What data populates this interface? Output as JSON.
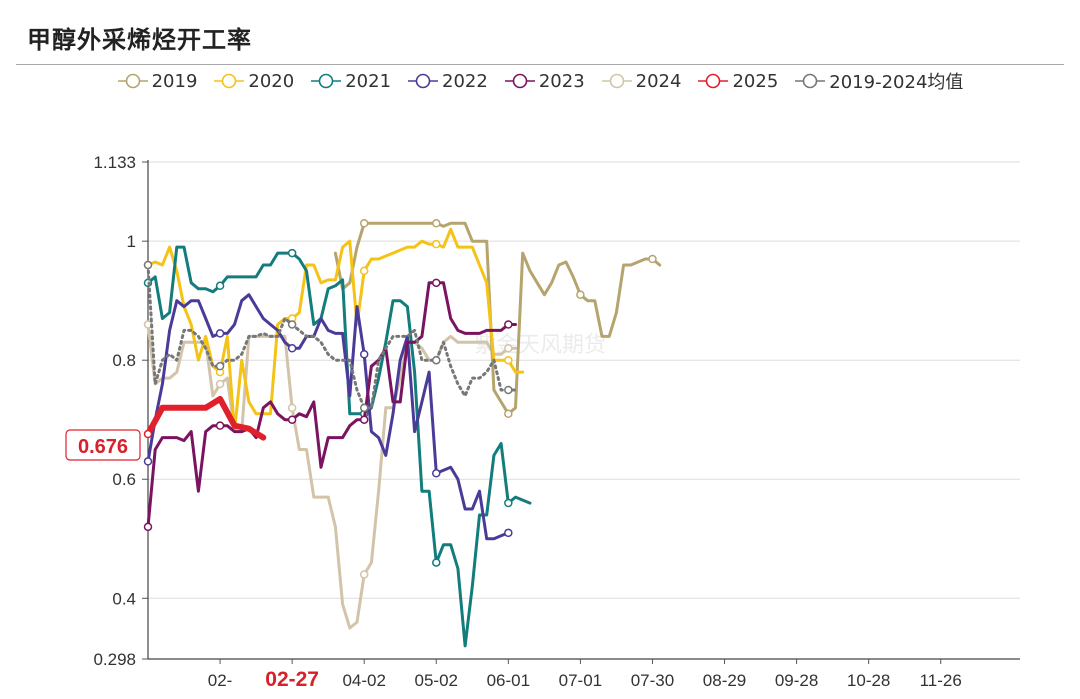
{
  "title": "甲醇外采烯烃开工率",
  "chart_data": {
    "type": "line",
    "title": "甲醇外采烯烃开工率",
    "xlabel": "",
    "ylabel": "",
    "ylim": [
      0.298,
      1.133
    ],
    "yticks": [
      0.298,
      0.4,
      0.6,
      0.8,
      1,
      1.133
    ],
    "ytick_labels": [
      "0.298",
      "0.4",
      "0.6",
      "0.8",
      "1",
      "1.133"
    ],
    "xticks": [
      {
        "label": "02-",
        "week": 10
      },
      {
        "label": "02-27",
        "week": 20,
        "highlight": true
      },
      {
        "label": "04-02",
        "week": 30
      },
      {
        "label": "05-02",
        "week": 40
      },
      {
        "label": "06-01",
        "week": 50
      },
      {
        "label": "07-01",
        "week": 60
      },
      {
        "label": "07-30",
        "week": 70
      },
      {
        "label": "08-29",
        "week": 80
      },
      {
        "label": "09-28",
        "week": 90
      },
      {
        "label": "10-28",
        "week": 100
      },
      {
        "label": "11-26",
        "week": 110
      }
    ],
    "x_weeks_total": 121,
    "grid": true,
    "legend_position": "top",
    "current_value_label": "0.676",
    "current_value": 0.676,
    "watermark": "紫金天风期货",
    "series": [
      {
        "name": "2019",
        "color": "#b5a46e",
        "width": 3,
        "dash": false,
        "values": [
          null,
          null,
          null,
          null,
          null,
          null,
          null,
          null,
          null,
          null,
          null,
          null,
          null,
          null,
          null,
          null,
          null,
          null,
          null,
          null,
          null,
          null,
          null,
          null,
          null,
          null,
          0.98,
          0.92,
          0.93,
          0.99,
          1.03,
          1.03,
          1.03,
          1.03,
          1.03,
          1.03,
          1.03,
          1.03,
          1.03,
          1.03,
          1.03,
          1.025,
          1.03,
          1.03,
          1.03,
          1.0,
          1.0,
          1.0,
          0.75,
          0.73,
          0.71,
          0.72,
          0.98,
          0.95,
          0.93,
          0.91,
          0.93,
          0.96,
          0.965,
          0.94,
          0.91,
          0.9,
          0.9,
          0.84,
          0.84,
          0.88,
          0.96,
          0.96,
          0.965,
          0.97,
          0.97,
          0.96
        ]
      },
      {
        "name": "2020",
        "color": "#f5c216",
        "width": 3,
        "dash": false,
        "values": [
          0.96,
          0.965,
          0.96,
          0.99,
          0.95,
          0.89,
          0.86,
          0.8,
          0.84,
          0.79,
          0.78,
          0.84,
          0.68,
          0.8,
          0.73,
          0.71,
          0.71,
          0.71,
          0.86,
          0.87,
          0.87,
          0.88,
          0.96,
          0.96,
          0.93,
          0.935,
          0.935,
          0.99,
          1.0,
          0.86,
          0.95,
          0.97,
          0.97,
          0.975,
          0.98,
          0.985,
          0.99,
          0.99,
          1.0,
          0.995,
          0.995,
          0.99,
          1.02,
          0.99,
          0.99,
          0.99,
          0.96,
          0.93,
          0.8,
          0.8,
          0.8,
          0.78,
          0.78
        ]
      },
      {
        "name": "2021",
        "color": "#137c7c",
        "width": 3,
        "dash": false,
        "values": [
          0.93,
          0.94,
          0.87,
          0.88,
          0.99,
          0.99,
          0.93,
          0.92,
          0.92,
          0.915,
          0.925,
          0.94,
          0.94,
          0.94,
          0.94,
          0.94,
          0.96,
          0.96,
          0.98,
          0.98,
          0.98,
          0.97,
          0.95,
          0.86,
          0.87,
          0.92,
          0.925,
          0.935,
          0.71,
          0.71,
          0.71,
          0.72,
          0.77,
          0.83,
          0.9,
          0.9,
          0.89,
          0.78,
          0.58,
          0.58,
          0.46,
          0.49,
          0.49,
          0.45,
          0.32,
          0.42,
          0.54,
          0.54,
          0.64,
          0.66,
          0.56,
          0.57,
          0.565,
          0.56
        ]
      },
      {
        "name": "2022",
        "color": "#4b3b99",
        "width": 3,
        "dash": false,
        "values": [
          0.63,
          0.7,
          0.76,
          0.85,
          0.9,
          0.89,
          0.9,
          0.9,
          0.87,
          0.84,
          0.845,
          0.845,
          0.86,
          0.9,
          0.91,
          0.89,
          0.87,
          0.86,
          0.85,
          0.83,
          0.82,
          0.82,
          0.84,
          0.84,
          0.87,
          0.85,
          0.845,
          0.845,
          0.74,
          0.89,
          0.81,
          0.68,
          0.67,
          0.64,
          0.71,
          0.8,
          0.84,
          0.68,
          0.73,
          0.78,
          0.61,
          0.615,
          0.62,
          0.6,
          0.55,
          0.55,
          0.58,
          0.5,
          0.5,
          0.505,
          0.51
        ]
      },
      {
        "name": "2023",
        "color": "#7a1460",
        "width": 3,
        "dash": false,
        "values": [
          0.52,
          0.65,
          0.67,
          0.67,
          0.67,
          0.665,
          0.68,
          0.58,
          0.68,
          0.69,
          0.69,
          0.69,
          0.68,
          0.68,
          0.685,
          0.67,
          0.72,
          0.73,
          0.71,
          0.7,
          0.7,
          0.71,
          0.705,
          0.73,
          0.62,
          0.67,
          0.67,
          0.67,
          0.69,
          0.7,
          0.7,
          0.79,
          0.8,
          0.82,
          0.73,
          0.73,
          0.83,
          0.83,
          0.84,
          0.93,
          0.93,
          0.93,
          0.87,
          0.85,
          0.845,
          0.845,
          0.845,
          0.85,
          0.85,
          0.85,
          0.86,
          0.86
        ]
      },
      {
        "name": "2024",
        "color": "#d2c4a8",
        "width": 3,
        "dash": false,
        "values": [
          0.86,
          0.76,
          0.77,
          0.77,
          0.78,
          0.83,
          0.83,
          0.83,
          0.83,
          0.74,
          0.76,
          0.77,
          0.68,
          0.68,
          0.84,
          0.84,
          0.84,
          0.84,
          0.84,
          0.84,
          0.72,
          0.65,
          0.65,
          0.57,
          0.57,
          0.57,
          0.52,
          0.39,
          0.35,
          0.36,
          0.44,
          0.46,
          0.58,
          0.72,
          0.72,
          0.77,
          0.83,
          0.83,
          0.82,
          0.8,
          0.8,
          0.83,
          0.84,
          0.83,
          0.83,
          0.83,
          0.83,
          0.83,
          0.81,
          0.81,
          0.82,
          0.82
        ]
      },
      {
        "name": "2025",
        "color": "#e0202a",
        "width": 6,
        "dash": false,
        "values": [
          0.676,
          0.72,
          0.72,
          0.72,
          0.72,
          0.735,
          0.69,
          0.685,
          0.67
        ]
      },
      {
        "name": "2019-2024均值",
        "color": "#777777",
        "width": 3,
        "dash": true,
        "values": [
          0.96,
          0.76,
          0.8,
          0.81,
          0.8,
          0.85,
          0.85,
          0.84,
          0.82,
          0.79,
          0.79,
          0.8,
          0.8,
          0.81,
          0.84,
          0.84,
          0.845,
          0.84,
          0.84,
          0.87,
          0.86,
          0.85,
          0.84,
          0.84,
          0.83,
          0.81,
          0.8,
          0.8,
          0.8,
          0.75,
          0.72,
          0.72,
          0.8,
          0.82,
          0.84,
          0.84,
          0.84,
          0.85,
          0.8,
          0.8,
          0.8,
          0.83,
          0.79,
          0.76,
          0.74,
          0.77,
          0.77,
          0.78,
          0.8,
          0.75,
          0.75,
          0.75
        ]
      }
    ]
  }
}
